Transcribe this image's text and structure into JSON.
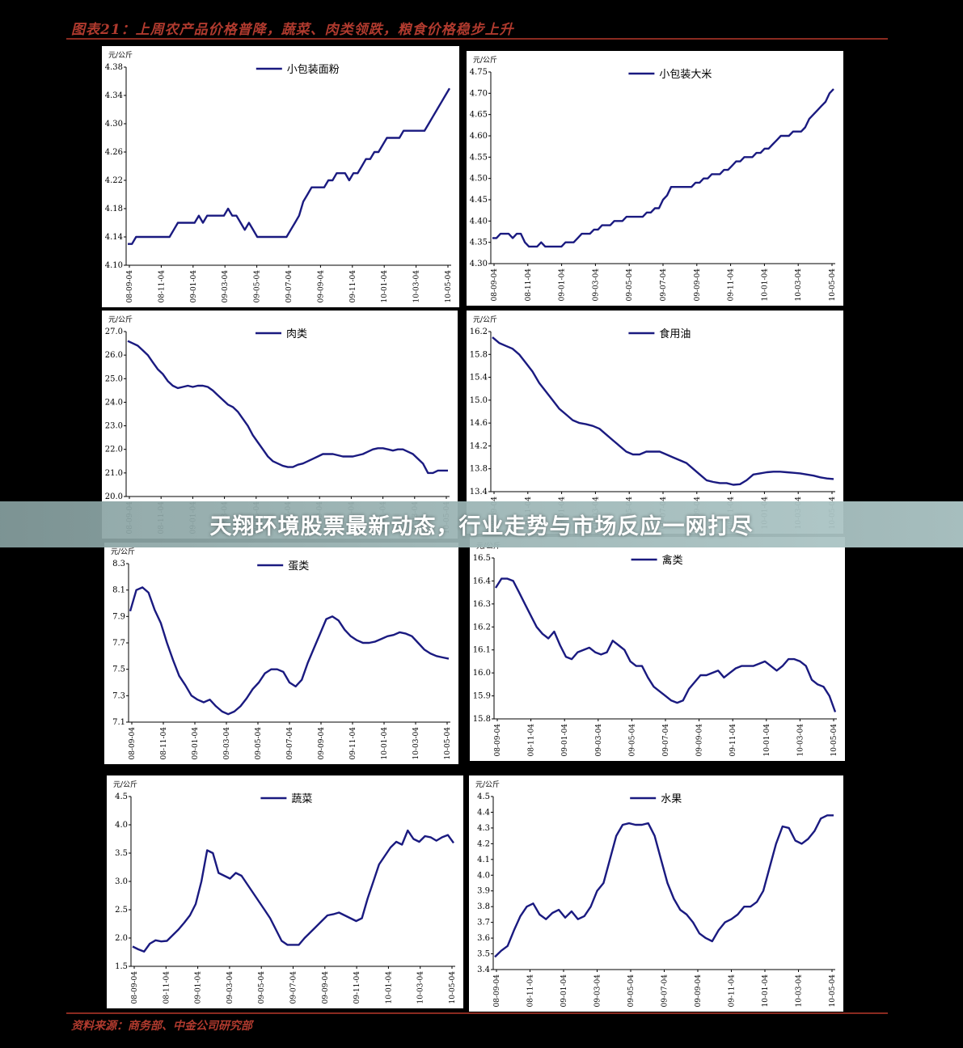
{
  "header": {
    "title": "图表21：上周农产品价格普降，蔬菜、肉类领跌，粮食价格稳步上升"
  },
  "footer": {
    "source": "资料来源：商务部、中金公司研究部"
  },
  "banner": {
    "text": "天翔环境股票最新动态，行业走势与市场反应一网打尽"
  },
  "colors": {
    "line": "#1a1a80",
    "title": "#b03a2e"
  },
  "shared_x_ticks": [
    "08-09-04",
    "08-11-04",
    "09-01-04",
    "09-03-04",
    "09-05-04",
    "09-07-04",
    "09-09-04",
    "09-11-04",
    "10-01-04",
    "10-03-04",
    "10-05-04"
  ],
  "chart_data": [
    {
      "type": "line",
      "unit": "元/公斤",
      "series": [
        {
          "name": "小包装面粉",
          "x_range": [
            "08-09-04",
            "10-05-04"
          ],
          "values": [
            4.13,
            4.13,
            4.14,
            4.14,
            4.14,
            4.14,
            4.14,
            4.14,
            4.14,
            4.14,
            4.14,
            4.15,
            4.16,
            4.16,
            4.16,
            4.16,
            4.16,
            4.17,
            4.16,
            4.17,
            4.17,
            4.17,
            4.17,
            4.17,
            4.18,
            4.17,
            4.17,
            4.16,
            4.15,
            4.16,
            4.15,
            4.14,
            4.14,
            4.14,
            4.14,
            4.14,
            4.14,
            4.14,
            4.14,
            4.15,
            4.16,
            4.17,
            4.19,
            4.2,
            4.21,
            4.21,
            4.21,
            4.21,
            4.22,
            4.22,
            4.23,
            4.23,
            4.23,
            4.22,
            4.23,
            4.23,
            4.24,
            4.25,
            4.25,
            4.26,
            4.26,
            4.27,
            4.28,
            4.28,
            4.28,
            4.28,
            4.29,
            4.29,
            4.29,
            4.29,
            4.29,
            4.29,
            4.3,
            4.31,
            4.32,
            4.33,
            4.34,
            4.35
          ]
        }
      ],
      "ylim": [
        4.1,
        4.38
      ],
      "yticks": [
        "4.10",
        "4.14",
        "4.18",
        "4.22",
        "4.26",
        "4.30",
        "4.34",
        "4.38"
      ],
      "ytick_values": [
        4.1,
        4.14,
        4.18,
        4.22,
        4.26,
        4.3,
        4.34,
        4.38
      ],
      "xticks": [
        "08-09-04",
        "08-11-04",
        "09-01-04",
        "09-03-04",
        "09-05-04",
        "09-07-04",
        "09-09-04",
        "09-11-04",
        "10-01-04",
        "10-03-04",
        "10-05-04"
      ],
      "legend": "top-center"
    },
    {
      "type": "line",
      "unit": "元/公斤",
      "series": [
        {
          "name": "小包装大米",
          "x_range": [
            "08-09-04",
            "10-05-04"
          ],
          "values": [
            4.36,
            4.36,
            4.37,
            4.37,
            4.37,
            4.36,
            4.37,
            4.37,
            4.35,
            4.34,
            4.34,
            4.34,
            4.35,
            4.34,
            4.34,
            4.34,
            4.34,
            4.34,
            4.35,
            4.35,
            4.35,
            4.36,
            4.37,
            4.37,
            4.37,
            4.38,
            4.38,
            4.39,
            4.39,
            4.39,
            4.4,
            4.4,
            4.4,
            4.41,
            4.41,
            4.41,
            4.41,
            4.41,
            4.42,
            4.42,
            4.43,
            4.43,
            4.45,
            4.46,
            4.48,
            4.48,
            4.48,
            4.48,
            4.48,
            4.48,
            4.49,
            4.49,
            4.5,
            4.5,
            4.51,
            4.51,
            4.51,
            4.52,
            4.52,
            4.53,
            4.54,
            4.54,
            4.55,
            4.55,
            4.55,
            4.56,
            4.56,
            4.57,
            4.57,
            4.58,
            4.59,
            4.6,
            4.6,
            4.6,
            4.61,
            4.61,
            4.61,
            4.62,
            4.64,
            4.65,
            4.66,
            4.67,
            4.68,
            4.7,
            4.71
          ]
        }
      ],
      "ylim": [
        4.3,
        4.75
      ],
      "yticks": [
        "4.30",
        "4.35",
        "4.40",
        "4.45",
        "4.50",
        "4.55",
        "4.60",
        "4.65",
        "4.70",
        "4.75"
      ],
      "ytick_values": [
        4.3,
        4.35,
        4.4,
        4.45,
        4.5,
        4.55,
        4.6,
        4.65,
        4.7,
        4.75
      ],
      "xticks": [
        "08-09-04",
        "08-11-04",
        "09-01-04",
        "09-03-04",
        "09-05-04",
        "09-07-04",
        "09-09-04",
        "09-11-04",
        "10-01-04",
        "10-03-04",
        "10-05-04"
      ],
      "legend": "top-center"
    },
    {
      "type": "line",
      "unit": "元/公斤",
      "series": [
        {
          "name": "肉类",
          "x_range": [
            "08-09-04",
            "10-05-04"
          ],
          "values": [
            26.6,
            26.5,
            26.4,
            26.2,
            26.0,
            25.7,
            25.4,
            25.2,
            24.9,
            24.7,
            24.6,
            24.65,
            24.7,
            24.65,
            24.7,
            24.7,
            24.65,
            24.5,
            24.3,
            24.1,
            23.9,
            23.8,
            23.6,
            23.3,
            23.0,
            22.6,
            22.3,
            22.0,
            21.7,
            21.5,
            21.4,
            21.3,
            21.25,
            21.25,
            21.35,
            21.4,
            21.5,
            21.6,
            21.7,
            21.8,
            21.8,
            21.8,
            21.75,
            21.7,
            21.7,
            21.7,
            21.75,
            21.8,
            21.9,
            22.0,
            22.05,
            22.05,
            22.0,
            21.95,
            22.0,
            22.0,
            21.9,
            21.8,
            21.6,
            21.4,
            21.0,
            21.0,
            21.1,
            21.1,
            21.1
          ]
        }
      ],
      "ylim": [
        20.0,
        27.0
      ],
      "yticks": [
        "20.0",
        "21.0",
        "22.0",
        "23.0",
        "24.0",
        "25.0",
        "26.0",
        "27.0"
      ],
      "ytick_values": [
        20.0,
        21.0,
        22.0,
        23.0,
        24.0,
        25.0,
        26.0,
        27.0
      ],
      "xticks": [
        "08-09-04",
        "08-11-04",
        "09-01-04",
        "09-03-04",
        "09-05-04",
        "09-07-04",
        "09-09-04",
        "09-11-04",
        "10-01-04",
        "10-03-04",
        "10-05-04"
      ],
      "legend": "top-center"
    },
    {
      "type": "line",
      "unit": "元/公斤",
      "series": [
        {
          "name": "食用油",
          "x_range": [
            "08-09-04",
            "10-05-04"
          ],
          "values": [
            16.1,
            16.0,
            15.95,
            15.9,
            15.8,
            15.65,
            15.5,
            15.3,
            15.15,
            15.0,
            14.85,
            14.75,
            14.65,
            14.6,
            14.58,
            14.55,
            14.5,
            14.4,
            14.3,
            14.2,
            14.1,
            14.05,
            14.05,
            14.1,
            14.1,
            14.1,
            14.05,
            14.0,
            13.95,
            13.9,
            13.8,
            13.7,
            13.6,
            13.57,
            13.55,
            13.55,
            13.52,
            13.53,
            13.6,
            13.7,
            13.72,
            13.74,
            13.75,
            13.75,
            13.74,
            13.73,
            13.72,
            13.7,
            13.68,
            13.65,
            13.63,
            13.62
          ]
        }
      ],
      "ylim": [
        13.4,
        16.2
      ],
      "yticks": [
        "13.4",
        "13.8",
        "14.2",
        "14.6",
        "15.0",
        "15.4",
        "15.8",
        "16.2"
      ],
      "ytick_values": [
        13.4,
        13.8,
        14.2,
        14.6,
        15.0,
        15.4,
        15.8,
        16.2
      ],
      "xticks": [
        "08-09-04",
        "08-11-04",
        "09-01-04",
        "09-03-04",
        "09-05-04",
        "09-07-04",
        "09-09-04",
        "09-11-04",
        "10-01-04",
        "10-03-04",
        "10-05-04"
      ],
      "legend": "top-center"
    },
    {
      "type": "line",
      "unit": "元/公斤",
      "series": [
        {
          "name": "蛋类",
          "x_range": [
            "08-09-04",
            "10-05-04"
          ],
          "values": [
            7.94,
            8.1,
            8.12,
            8.08,
            7.95,
            7.85,
            7.7,
            7.57,
            7.45,
            7.38,
            7.3,
            7.27,
            7.25,
            7.27,
            7.22,
            7.18,
            7.16,
            7.18,
            7.22,
            7.28,
            7.35,
            7.4,
            7.47,
            7.5,
            7.5,
            7.48,
            7.4,
            7.37,
            7.42,
            7.55,
            7.66,
            7.77,
            7.88,
            7.9,
            7.87,
            7.8,
            7.75,
            7.72,
            7.7,
            7.7,
            7.71,
            7.73,
            7.75,
            7.76,
            7.78,
            7.77,
            7.75,
            7.7,
            7.65,
            7.62,
            7.6,
            7.59,
            7.58
          ]
        }
      ],
      "ylim": [
        7.1,
        8.3
      ],
      "yticks": [
        "7.1",
        "7.3",
        "7.5",
        "7.7",
        "7.9",
        "8.1",
        "8.3"
      ],
      "ytick_values": [
        7.1,
        7.3,
        7.5,
        7.7,
        7.9,
        8.1,
        8.3
      ],
      "xticks": [
        "08-09-04",
        "08-11-04",
        "09-01-04",
        "09-03-04",
        "09-05-04",
        "09-07-04",
        "09-09-04",
        "09-11-04",
        "10-01-04",
        "10-03-04",
        "10-05-04"
      ],
      "legend": "top-center"
    },
    {
      "type": "line",
      "unit": "元/公斤",
      "series": [
        {
          "name": "禽类",
          "x_range": [
            "08-09-04",
            "10-05-04"
          ],
          "values": [
            16.37,
            16.41,
            16.41,
            16.4,
            16.35,
            16.3,
            16.25,
            16.2,
            16.17,
            16.15,
            16.18,
            16.12,
            16.07,
            16.06,
            16.09,
            16.1,
            16.11,
            16.09,
            16.08,
            16.09,
            16.14,
            16.12,
            16.1,
            16.05,
            16.03,
            16.03,
            15.98,
            15.94,
            15.92,
            15.9,
            15.88,
            15.87,
            15.88,
            15.93,
            15.96,
            15.99,
            15.99,
            16.0,
            16.01,
            15.98,
            16.0,
            16.02,
            16.03,
            16.03,
            16.03,
            16.04,
            16.05,
            16.03,
            16.01,
            16.03,
            16.06,
            16.06,
            16.05,
            16.03,
            15.97,
            15.95,
            15.94,
            15.9,
            15.83
          ]
        }
      ],
      "ylim": [
        15.8,
        16.5
      ],
      "yticks": [
        "15.8",
        "15.9",
        "16.0",
        "16.1",
        "16.2",
        "16.3",
        "16.4",
        "16.5"
      ],
      "ytick_values": [
        15.8,
        15.9,
        16.0,
        16.1,
        16.2,
        16.3,
        16.4,
        16.5
      ],
      "xticks": [
        "08-09-04",
        "08-11-04",
        "09-01-04",
        "09-03-04",
        "09-05-04",
        "09-07-04",
        "09-09-04",
        "09-11-04",
        "10-01-04",
        "10-03-04",
        "10-05-04"
      ],
      "legend": "top-center"
    },
    {
      "type": "line",
      "unit": "元/公斤",
      "series": [
        {
          "name": "蔬菜",
          "x_range": [
            "08-09-04",
            "10-05-04"
          ],
          "values": [
            1.85,
            1.8,
            1.76,
            1.9,
            1.96,
            1.94,
            1.95,
            2.05,
            2.15,
            2.27,
            2.4,
            2.6,
            3.0,
            3.55,
            3.5,
            3.15,
            3.1,
            3.05,
            3.15,
            3.1,
            2.95,
            2.8,
            2.65,
            2.5,
            2.35,
            2.15,
            1.95,
            1.88,
            1.88,
            1.88,
            2.0,
            2.1,
            2.2,
            2.3,
            2.4,
            2.42,
            2.45,
            2.4,
            2.35,
            2.3,
            2.35,
            2.7,
            3.0,
            3.3,
            3.45,
            3.6,
            3.7,
            3.65,
            3.9,
            3.75,
            3.7,
            3.8,
            3.78,
            3.72,
            3.78,
            3.82,
            3.68
          ]
        }
      ],
      "ylim": [
        1.5,
        4.5
      ],
      "yticks": [
        "1.5",
        "2.0",
        "2.5",
        "3.0",
        "3.5",
        "4.0",
        "4.5"
      ],
      "ytick_values": [
        1.5,
        2.0,
        2.5,
        3.0,
        3.5,
        4.0,
        4.5
      ],
      "xticks": [
        "08-09-04",
        "08-11-04",
        "09-01-04",
        "09-03-04",
        "09-05-04",
        "09-07-04",
        "09-09-04",
        "09-11-04",
        "10-01-04",
        "10-03-04",
        "10-05-04"
      ],
      "legend": "top-center"
    },
    {
      "type": "line",
      "unit": "元/公斤",
      "series": [
        {
          "name": "水果",
          "x_range": [
            "08-09-04",
            "10-05-04"
          ],
          "values": [
            3.48,
            3.52,
            3.55,
            3.65,
            3.74,
            3.8,
            3.82,
            3.75,
            3.72,
            3.76,
            3.78,
            3.73,
            3.77,
            3.72,
            3.74,
            3.8,
            3.9,
            3.95,
            4.1,
            4.25,
            4.32,
            4.33,
            4.32,
            4.32,
            4.33,
            4.25,
            4.1,
            3.95,
            3.85,
            3.78,
            3.75,
            3.7,
            3.63,
            3.6,
            3.58,
            3.65,
            3.7,
            3.72,
            3.75,
            3.8,
            3.8,
            3.83,
            3.9,
            4.05,
            4.2,
            4.31,
            4.3,
            4.22,
            4.2,
            4.23,
            4.28,
            4.36,
            4.38,
            4.38
          ]
        }
      ],
      "ylim": [
        3.4,
        4.5
      ],
      "yticks": [
        "3.4",
        "3.5",
        "3.6",
        "3.7",
        "3.8",
        "3.9",
        "4.0",
        "4.1",
        "4.2",
        "4.3",
        "4.4",
        "4.5"
      ],
      "ytick_values": [
        3.4,
        3.5,
        3.6,
        3.7,
        3.8,
        3.9,
        4.0,
        4.1,
        4.2,
        4.3,
        4.4,
        4.5
      ],
      "xticks": [
        "08-09-04",
        "08-11-04",
        "09-01-04",
        "09-03-04",
        "09-05-04",
        "09-07-04",
        "09-09-04",
        "09-11-04",
        "10-01-04",
        "10-03-04",
        "10-05-04"
      ],
      "legend": "top-center"
    }
  ]
}
